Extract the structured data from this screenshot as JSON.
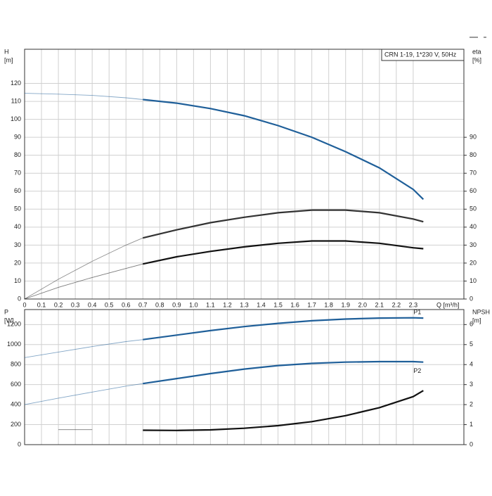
{
  "chart_data": [
    {
      "type": "line",
      "title": "CRN 1-19, 1*230 V, 50Hz",
      "x_label": "Q [m³/h]",
      "y_label": "H",
      "y_unit": "[m]",
      "y2_label": "eta",
      "y2_unit": "[%]",
      "xlim": [
        0,
        2.6
      ],
      "ylim": [
        0,
        139
      ],
      "y2lim": [
        0,
        139
      ],
      "grid": true,
      "bold_from_x": 0.7,
      "xticks": [
        0,
        0.1,
        0.2,
        0.3,
        0.4,
        0.5,
        0.6,
        0.7,
        0.8,
        0.9,
        {
          "value": 1,
          "label": "1.0"
        },
        1.1,
        1.2,
        1.3,
        1.4,
        1.5,
        1.6,
        1.7,
        1.8,
        1.9,
        {
          "value": 2,
          "label": "2.0"
        },
        2.1,
        2.2,
        2.3
      ],
      "yticks": [
        0,
        10,
        20,
        30,
        40,
        50,
        60,
        70,
        80,
        90,
        100,
        110,
        120
      ],
      "y2ticks": [
        0,
        10,
        20,
        30,
        40,
        50,
        60,
        70,
        80,
        90
      ],
      "x": [
        0,
        0.2,
        0.4,
        0.6,
        0.7,
        0.9,
        1.1,
        1.3,
        1.5,
        1.7,
        1.9,
        2.1,
        2.3,
        2.36
      ],
      "series": [
        {
          "color": "#1f5f99",
          "values": [
            114.5,
            114,
            113.3,
            112,
            111,
            109,
            106,
            102,
            96.5,
            90,
            82,
            73,
            61,
            55.5
          ]
        },
        {
          "color": "#333333",
          "axis": "y2",
          "values": [
            0,
            11,
            21,
            30,
            34,
            38.5,
            42.5,
            45.5,
            48,
            49.5,
            49.5,
            48,
            44.5,
            43
          ]
        },
        {
          "color": "#111111",
          "axis": "y2",
          "values": [
            0,
            6.5,
            12,
            17,
            19.5,
            23.5,
            26.5,
            29,
            31,
            32.3,
            32.3,
            31,
            28.5,
            28
          ]
        }
      ]
    },
    {
      "type": "line",
      "y_label": "P",
      "y_unit": "[W]",
      "y2_label": "NPSH",
      "y2_unit": "[m]",
      "xlim": [
        0,
        2.6
      ],
      "ylim": [
        0,
        1350
      ],
      "y2lim": [
        0,
        6.75
      ],
      "grid": true,
      "bold_from_x": 0.7,
      "yticks": [
        0,
        200,
        400,
        600,
        800,
        1000,
        1200
      ],
      "y2ticks": [
        0,
        1,
        2,
        3,
        4,
        5,
        6
      ],
      "x": [
        0,
        0.2,
        0.4,
        0.6,
        0.7,
        0.9,
        1.1,
        1.3,
        1.5,
        1.7,
        1.9,
        2.1,
        2.3,
        2.36
      ],
      "series": [
        {
          "name": "P1",
          "color": "#1f5f99",
          "values": [
            870,
            925,
            980,
            1030,
            1050,
            1095,
            1140,
            1180,
            1212,
            1238,
            1255,
            1265,
            1268,
            1265
          ]
        },
        {
          "name": "P2",
          "color": "#1f5f99",
          "values": [
            400,
            465,
            525,
            585,
            610,
            660,
            710,
            755,
            790,
            812,
            825,
            830,
            830,
            825
          ]
        },
        {
          "color": "#111111",
          "axis": "y2",
          "values": [
            null,
            0.75,
            0.75,
            null,
            0.72,
            0.71,
            0.74,
            0.82,
            0.95,
            1.15,
            1.45,
            1.85,
            2.4,
            2.7
          ]
        }
      ]
    }
  ]
}
